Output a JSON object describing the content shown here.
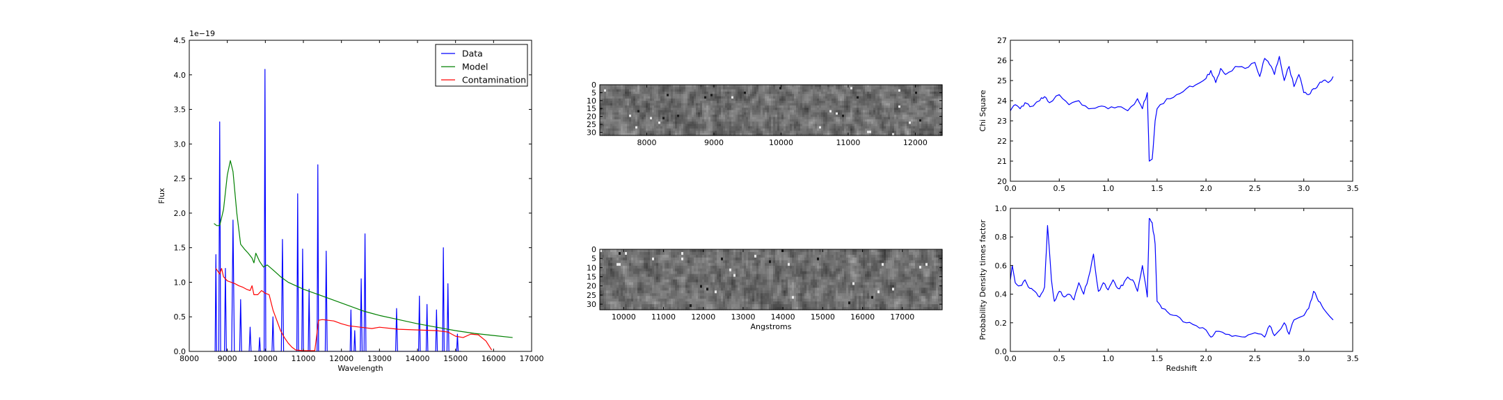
{
  "chart_data": [
    {
      "id": "spectrum",
      "type": "line",
      "xlabel": "Wavelength",
      "ylabel": "Flux",
      "y_offset_label": "1e−19",
      "xlim": [
        8000,
        17000
      ],
      "ylim": [
        0,
        4.5
      ],
      "xticks": [
        8000,
        9000,
        10000,
        11000,
        12000,
        13000,
        14000,
        15000,
        16000,
        17000
      ],
      "xtick_labels": [
        "8000",
        "9000",
        "10000",
        "11000",
        "12000",
        "13000",
        "14000",
        "15000",
        "16000",
        "17000"
      ],
      "yticks": [
        0,
        0.5,
        1.0,
        1.5,
        2.0,
        2.5,
        3.0,
        3.5,
        4.0,
        4.5
      ],
      "ytick_labels": [
        "0.0",
        "0.5",
        "1.0",
        "1.5",
        "2.0",
        "2.5",
        "3.0",
        "3.5",
        "4.0",
        "4.5"
      ],
      "legend_position": "top-right",
      "series": [
        {
          "name": "Data",
          "color": "#0000ff",
          "baseline_range": [
            8650,
            15150
          ],
          "peaks": [
            [
              8700,
              1.4,
              20
            ],
            [
              8800,
              3.32,
              25
            ],
            [
              8950,
              1.2,
              25
            ],
            [
              9150,
              1.9,
              35
            ],
            [
              9350,
              0.75,
              25
            ],
            [
              9600,
              0.35,
              25
            ],
            [
              9850,
              0.2,
              20
            ],
            [
              9990,
              4.08,
              22
            ],
            [
              10200,
              0.5,
              25
            ],
            [
              10450,
              1.62,
              30
            ],
            [
              10850,
              2.28,
              22
            ],
            [
              10980,
              1.48,
              22
            ],
            [
              11150,
              0.9,
              22
            ],
            [
              11380,
              2.7,
              20
            ],
            [
              11600,
              1.45,
              25
            ],
            [
              12250,
              0.6,
              20
            ],
            [
              12350,
              0.3,
              20
            ],
            [
              12520,
              1.05,
              25
            ],
            [
              12620,
              1.7,
              25
            ],
            [
              13450,
              0.62,
              25
            ],
            [
              14050,
              0.8,
              22
            ],
            [
              14250,
              0.68,
              22
            ],
            [
              14500,
              0.6,
              22
            ],
            [
              14680,
              1.5,
              22
            ],
            [
              14800,
              0.98,
              25
            ],
            [
              15050,
              0.25,
              20
            ]
          ]
        },
        {
          "name": "Model",
          "color": "#008000",
          "points": [
            [
              8650,
              1.85
            ],
            [
              8720,
              1.82
            ],
            [
              8800,
              1.82
            ],
            [
              8900,
              2.05
            ],
            [
              9000,
              2.55
            ],
            [
              9080,
              2.76
            ],
            [
              9150,
              2.6
            ],
            [
              9250,
              2.0
            ],
            [
              9350,
              1.55
            ],
            [
              9450,
              1.48
            ],
            [
              9550,
              1.42
            ],
            [
              9650,
              1.35
            ],
            [
              9700,
              1.28
            ],
            [
              9750,
              1.42
            ],
            [
              9850,
              1.3
            ],
            [
              9950,
              1.22
            ],
            [
              10050,
              1.25
            ],
            [
              10200,
              1.18
            ],
            [
              10400,
              1.08
            ],
            [
              10600,
              1.0
            ],
            [
              10800,
              0.95
            ],
            [
              11000,
              0.9
            ],
            [
              11200,
              0.86
            ],
            [
              11400,
              0.82
            ],
            [
              11600,
              0.78
            ],
            [
              11800,
              0.74
            ],
            [
              12000,
              0.7
            ],
            [
              12200,
              0.66
            ],
            [
              12400,
              0.62
            ],
            [
              12600,
              0.58
            ],
            [
              12800,
              0.55
            ],
            [
              13000,
              0.52
            ],
            [
              13500,
              0.46
            ],
            [
              14000,
              0.4
            ],
            [
              14500,
              0.35
            ],
            [
              15000,
              0.3
            ],
            [
              15500,
              0.26
            ],
            [
              16000,
              0.23
            ],
            [
              16500,
              0.2
            ]
          ]
        },
        {
          "name": "Contamination",
          "color": "#ff0000",
          "points": [
            [
              8700,
              1.2
            ],
            [
              8800,
              1.12
            ],
            [
              8850,
              1.2
            ],
            [
              8900,
              1.08
            ],
            [
              9000,
              1.02
            ],
            [
              9100,
              1.0
            ],
            [
              9200,
              0.98
            ],
            [
              9300,
              0.95
            ],
            [
              9400,
              0.93
            ],
            [
              9500,
              0.9
            ],
            [
              9600,
              0.88
            ],
            [
              9650,
              0.95
            ],
            [
              9700,
              0.82
            ],
            [
              9800,
              0.82
            ],
            [
              9900,
              0.88
            ],
            [
              10000,
              0.84
            ],
            [
              10100,
              0.82
            ],
            [
              10200,
              0.6
            ],
            [
              10300,
              0.45
            ],
            [
              10400,
              0.3
            ],
            [
              10500,
              0.2
            ],
            [
              10600,
              0.12
            ],
            [
              10700,
              0.06
            ],
            [
              10800,
              0.02
            ],
            [
              11000,
              0.01
            ],
            [
              11300,
              0.01
            ],
            [
              11400,
              0.45
            ],
            [
              11500,
              0.46
            ],
            [
              11800,
              0.44
            ],
            [
              12000,
              0.4
            ],
            [
              12200,
              0.37
            ],
            [
              12500,
              0.35
            ],
            [
              12800,
              0.33
            ],
            [
              13000,
              0.35
            ],
            [
              13500,
              0.32
            ],
            [
              14000,
              0.31
            ],
            [
              14500,
              0.3
            ],
            [
              14800,
              0.28
            ],
            [
              15000,
              0.22
            ],
            [
              15200,
              0.2
            ],
            [
              15400,
              0.25
            ],
            [
              15600,
              0.24
            ],
            [
              15800,
              0.15
            ],
            [
              15950,
              0.02
            ]
          ]
        }
      ]
    },
    {
      "id": "image-top",
      "type": "heatmap",
      "colormap": "gray",
      "xlim": [
        7300,
        12400
      ],
      "ylim": [
        0,
        32
      ],
      "xticks": [
        8000,
        9000,
        10000,
        11000,
        12000
      ],
      "xtick_labels": [
        "8000",
        "9000",
        "10000",
        "11000",
        "12000"
      ],
      "yticks": [
        0,
        5,
        10,
        15,
        20,
        25,
        30
      ],
      "ytick_labels": [
        "0",
        "5",
        "10",
        "15",
        "20",
        "25",
        "30"
      ]
    },
    {
      "id": "image-bottom",
      "type": "heatmap",
      "colormap": "gray",
      "xlabel": "Angstroms",
      "xlim": [
        9400,
        18000
      ],
      "ylim": [
        0,
        33
      ],
      "xticks": [
        10000,
        11000,
        12000,
        13000,
        14000,
        15000,
        16000,
        17000
      ],
      "xtick_labels": [
        "10000",
        "11000",
        "12000",
        "13000",
        "14000",
        "15000",
        "16000",
        "17000"
      ],
      "yticks": [
        0,
        5,
        10,
        15,
        20,
        25,
        30
      ],
      "ytick_labels": [
        "0",
        "5",
        "10",
        "15",
        "20",
        "25",
        "30"
      ]
    },
    {
      "id": "chi-square",
      "type": "line",
      "ylabel": "Chi Square",
      "xlim": [
        0,
        3.5
      ],
      "ylim": [
        20,
        27
      ],
      "xticks": [
        0,
        0.5,
        1.0,
        1.5,
        2.0,
        2.5,
        3.0,
        3.5
      ],
      "xtick_labels": [
        "0.0",
        "0.5",
        "1.0",
        "1.5",
        "2.0",
        "2.5",
        "3.0",
        "3.5"
      ],
      "yticks": [
        20,
        21,
        22,
        23,
        24,
        25,
        26,
        27
      ],
      "ytick_labels": [
        "20",
        "21",
        "22",
        "23",
        "24",
        "25",
        "26",
        "27"
      ],
      "series": [
        {
          "color": "#0000ff",
          "points": [
            [
              0,
              23.5
            ],
            [
              0.05,
              23.8
            ],
            [
              0.1,
              23.6
            ],
            [
              0.15,
              23.9
            ],
            [
              0.2,
              23.7
            ],
            [
              0.3,
              24.0
            ],
            [
              0.35,
              24.2
            ],
            [
              0.4,
              23.9
            ],
            [
              0.5,
              24.3
            ],
            [
              0.6,
              23.8
            ],
            [
              0.7,
              24.0
            ],
            [
              0.8,
              23.6
            ],
            [
              0.9,
              23.7
            ],
            [
              1.0,
              23.6
            ],
            [
              1.1,
              23.7
            ],
            [
              1.2,
              23.5
            ],
            [
              1.3,
              24.1
            ],
            [
              1.35,
              23.6
            ],
            [
              1.4,
              24.4
            ],
            [
              1.42,
              21.0
            ],
            [
              1.45,
              21.1
            ],
            [
              1.48,
              23.0
            ],
            [
              1.5,
              23.6
            ],
            [
              1.6,
              24.1
            ],
            [
              1.7,
              24.3
            ],
            [
              1.8,
              24.6
            ],
            [
              1.9,
              24.8
            ],
            [
              2.0,
              25.1
            ],
            [
              2.05,
              25.5
            ],
            [
              2.1,
              24.9
            ],
            [
              2.15,
              25.6
            ],
            [
              2.2,
              25.3
            ],
            [
              2.3,
              25.7
            ],
            [
              2.4,
              25.6
            ],
            [
              2.5,
              25.9
            ],
            [
              2.55,
              25.2
            ],
            [
              2.6,
              26.1
            ],
            [
              2.65,
              25.8
            ],
            [
              2.7,
              25.3
            ],
            [
              2.75,
              26.2
            ],
            [
              2.8,
              25.0
            ],
            [
              2.85,
              25.7
            ],
            [
              2.9,
              24.7
            ],
            [
              2.95,
              25.3
            ],
            [
              3.0,
              24.4
            ],
            [
              3.05,
              24.3
            ],
            [
              3.1,
              24.6
            ],
            [
              3.15,
              24.8
            ],
            [
              3.2,
              25.0
            ],
            [
              3.25,
              24.9
            ],
            [
              3.3,
              25.2
            ]
          ]
        }
      ]
    },
    {
      "id": "probability",
      "type": "line",
      "xlabel": "Redshift",
      "ylabel": "Probability Density times factor",
      "xlim": [
        0,
        3.5
      ],
      "ylim": [
        0,
        1.0
      ],
      "xticks": [
        0,
        0.5,
        1.0,
        1.5,
        2.0,
        2.5,
        3.0,
        3.5
      ],
      "xtick_labels": [
        "0.0",
        "0.5",
        "1.0",
        "1.5",
        "2.0",
        "2.5",
        "3.0",
        "3.5"
      ],
      "yticks": [
        0,
        0.2,
        0.4,
        0.6,
        0.8,
        1.0
      ],
      "ytick_labels": [
        "0.0",
        "0.2",
        "0.4",
        "0.6",
        "0.8",
        "1.0"
      ],
      "series": [
        {
          "color": "#0000ff",
          "points": [
            [
              0,
              0.5
            ],
            [
              0.02,
              0.6
            ],
            [
              0.05,
              0.48
            ],
            [
              0.1,
              0.46
            ],
            [
              0.15,
              0.5
            ],
            [
              0.2,
              0.44
            ],
            [
              0.25,
              0.42
            ],
            [
              0.3,
              0.38
            ],
            [
              0.35,
              0.45
            ],
            [
              0.38,
              0.88
            ],
            [
              0.42,
              0.5
            ],
            [
              0.45,
              0.35
            ],
            [
              0.5,
              0.42
            ],
            [
              0.55,
              0.38
            ],
            [
              0.6,
              0.4
            ],
            [
              0.65,
              0.36
            ],
            [
              0.7,
              0.48
            ],
            [
              0.75,
              0.4
            ],
            [
              0.8,
              0.52
            ],
            [
              0.85,
              0.68
            ],
            [
              0.9,
              0.42
            ],
            [
              0.95,
              0.48
            ],
            [
              1.0,
              0.43
            ],
            [
              1.05,
              0.5
            ],
            [
              1.1,
              0.44
            ],
            [
              1.15,
              0.46
            ],
            [
              1.2,
              0.52
            ],
            [
              1.25,
              0.5
            ],
            [
              1.3,
              0.42
            ],
            [
              1.35,
              0.6
            ],
            [
              1.4,
              0.38
            ],
            [
              1.42,
              0.93
            ],
            [
              1.45,
              0.9
            ],
            [
              1.48,
              0.75
            ],
            [
              1.5,
              0.35
            ],
            [
              1.55,
              0.3
            ],
            [
              1.6,
              0.28
            ],
            [
              1.7,
              0.25
            ],
            [
              1.8,
              0.2
            ],
            [
              1.9,
              0.18
            ],
            [
              2.0,
              0.15
            ],
            [
              2.05,
              0.1
            ],
            [
              2.1,
              0.14
            ],
            [
              2.2,
              0.12
            ],
            [
              2.3,
              0.11
            ],
            [
              2.4,
              0.1
            ],
            [
              2.5,
              0.13
            ],
            [
              2.6,
              0.1
            ],
            [
              2.65,
              0.18
            ],
            [
              2.7,
              0.11
            ],
            [
              2.8,
              0.2
            ],
            [
              2.85,
              0.12
            ],
            [
              2.9,
              0.22
            ],
            [
              3.0,
              0.25
            ],
            [
              3.05,
              0.3
            ],
            [
              3.1,
              0.42
            ],
            [
              3.15,
              0.35
            ],
            [
              3.2,
              0.3
            ],
            [
              3.3,
              0.22
            ]
          ]
        }
      ]
    }
  ]
}
